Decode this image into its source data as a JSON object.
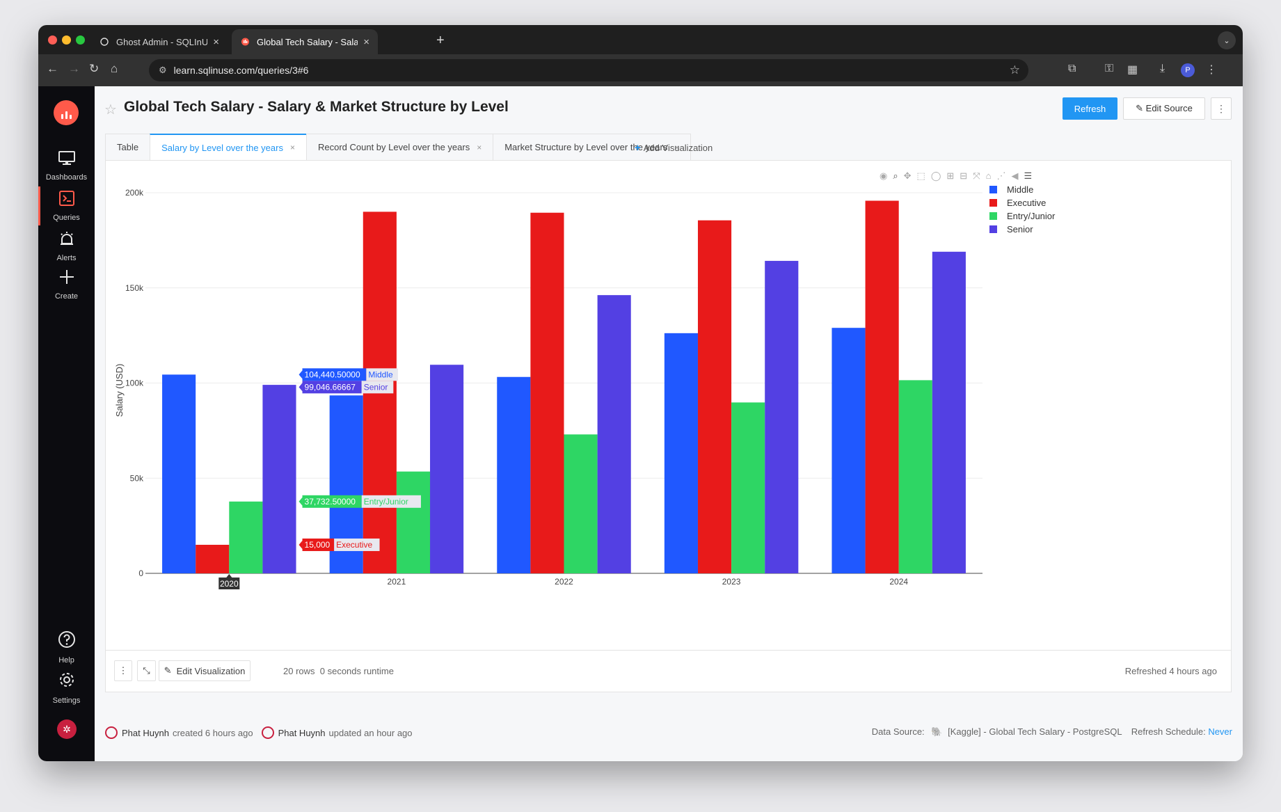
{
  "browser": {
    "tabs": [
      {
        "title": "Ghost Admin - SQLInUse",
        "active": false
      },
      {
        "title": "Global Tech Salary - Salary &",
        "active": true
      }
    ],
    "url": "learn.sqlinuse.com/queries/3#6",
    "profile_initial": "P"
  },
  "sidebar": {
    "items": [
      {
        "label": "Dashboards",
        "icon": "monitor-icon"
      },
      {
        "label": "Queries",
        "icon": "terminal-icon",
        "active": true
      },
      {
        "label": "Alerts",
        "icon": "alarm-icon"
      },
      {
        "label": "Create",
        "icon": "plus-icon"
      },
      {
        "label": "Help",
        "icon": "help-icon"
      },
      {
        "label": "Settings",
        "icon": "gear-icon"
      }
    ]
  },
  "page": {
    "title": "Global Tech Salary - Salary & Market Structure by Level",
    "refresh_label": "Refresh",
    "edit_source_label": "Edit Source",
    "more_label": "⋮"
  },
  "viz_tabs": [
    {
      "label": "Table",
      "closable": false,
      "active": false
    },
    {
      "label": "Salary by Level over the years",
      "closable": true,
      "active": true
    },
    {
      "label": "Record Count by Level over the years",
      "closable": true,
      "active": false
    },
    {
      "label": "Market Structure by Level over the years",
      "closable": true,
      "active": false
    }
  ],
  "add_visualization_label": "Add Visualization",
  "chart_data": {
    "type": "bar",
    "ylabel": "Salary (USD)",
    "xlabel": "",
    "title": "",
    "categories": [
      "2020",
      "2021",
      "2022",
      "2023",
      "2024"
    ],
    "ylim": [
      0,
      200000
    ],
    "yticks": [
      0,
      50000,
      100000,
      150000,
      200000
    ],
    "ytick_labels": [
      "0",
      "50k",
      "100k",
      "150k",
      "200k"
    ],
    "grid": true,
    "legend_position": "top-right",
    "series": [
      {
        "name": "Middle",
        "color": "#2058ff",
        "values": [
          104440.5,
          93500,
          103200,
          126200,
          129000
        ]
      },
      {
        "name": "Executive",
        "color": "#e81a1a",
        "values": [
          15000,
          190000,
          189500,
          185500,
          195800
        ]
      },
      {
        "name": "Entry/Junior",
        "color": "#2ed664",
        "values": [
          37732.5,
          53500,
          73000,
          89800,
          101500
        ]
      },
      {
        "name": "Senior",
        "color": "#5340e3",
        "values": [
          99046.66667,
          109600,
          146200,
          164200,
          169000
        ]
      }
    ],
    "hover": {
      "category": "2020",
      "labels": [
        {
          "value": "104,440.50000",
          "name": "Middle",
          "series_index": 0
        },
        {
          "value": "99,046.66667",
          "name": "Senior",
          "series_index": 3
        },
        {
          "value": "37,732.50000",
          "name": "Entry/Junior",
          "series_index": 2
        },
        {
          "value": "15,000",
          "name": "Executive",
          "series_index": 1
        }
      ]
    }
  },
  "footer": {
    "edit_visualization_label": "Edit Visualization",
    "rows_info": "20 rows  0 seconds runtime",
    "refreshed": "Refreshed 4 hours ago"
  },
  "meta": {
    "created_by": "Phat Huynh",
    "created_text": "created 6 hours ago",
    "updated_by": "Phat Huynh",
    "updated_text": "updated an hour ago",
    "data_source_label": "Data Source:",
    "data_source": "[Kaggle] - Global Tech Salary - PostgreSQL",
    "refresh_schedule_label": "Refresh Schedule:",
    "refresh_schedule": "Never"
  }
}
